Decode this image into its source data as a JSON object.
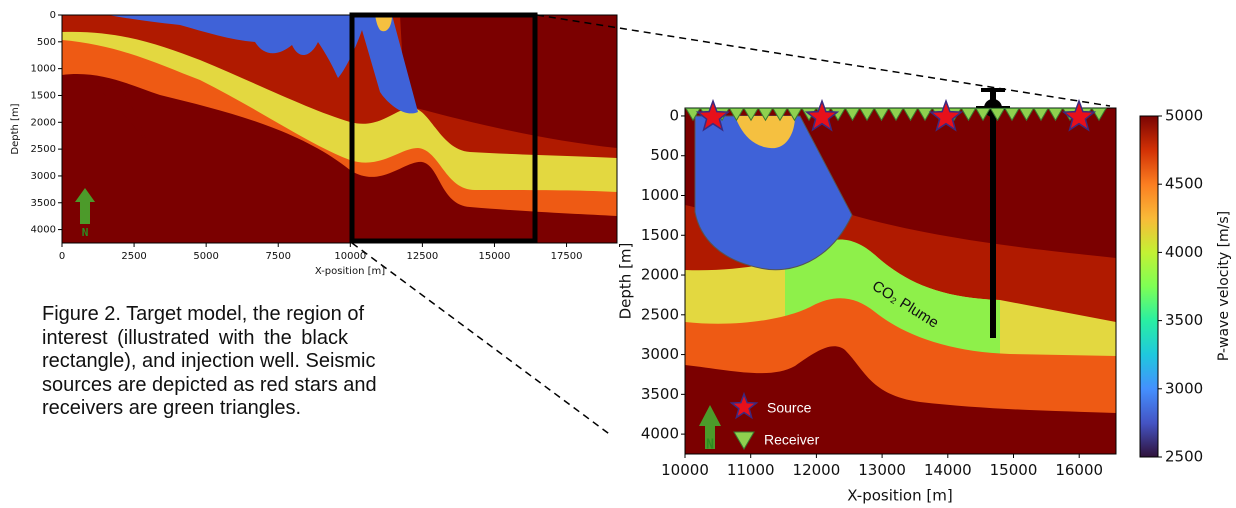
{
  "left_panel": {
    "xlabel": "X-position [m]",
    "ylabel": "Depth [m]",
    "north": "N",
    "xlim": [
      0,
      19250
    ],
    "ylim": [
      0,
      4250
    ],
    "xticks": [
      0,
      2500,
      5000,
      7500,
      10000,
      12500,
      15000,
      17500
    ],
    "yticks": [
      0,
      500,
      1000,
      1500,
      2000,
      2500,
      3000,
      3500,
      4000
    ]
  },
  "right_panel": {
    "xlabel": "X-position [m]",
    "ylabel": "Depth [m]",
    "north": "N",
    "annotation": "CO₂ Plume",
    "legend": [
      "Source",
      "Receiver"
    ],
    "xlim": [
      10000,
      16560
    ],
    "ylim": [
      -100,
      4250
    ],
    "xticks": [
      10000,
      11000,
      12000,
      13000,
      14000,
      15000,
      16000
    ],
    "yticks": [
      0,
      500,
      1000,
      1500,
      2000,
      2500,
      3000,
      3500,
      4000
    ]
  },
  "colorbar": {
    "label": "P-wave velocity [m/s]",
    "lim": [
      2500,
      5000
    ],
    "ticks": [
      2500,
      3000,
      3500,
      4000,
      4500,
      5000
    ]
  },
  "caption": [
    "Figure 2. Target model, the region of",
    "interest (illustrated with the black",
    "rectangle), and injection well. Seismic",
    "sources are depicted as red stars and",
    "receivers are green triangles."
  ]
}
